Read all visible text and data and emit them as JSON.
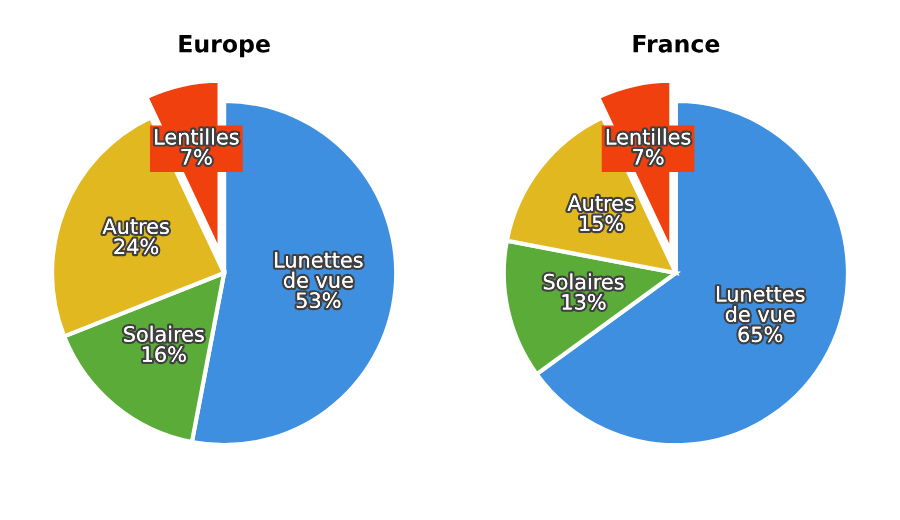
{
  "chart_data": [
    {
      "type": "pie",
      "title": "Europe",
      "categories": [
        "Lunettes de vue",
        "Solaires",
        "Autres",
        "Lentilles"
      ],
      "values": [
        53,
        16,
        24,
        7
      ],
      "value_labels": [
        "53%",
        "16%",
        "24%",
        "7%"
      ],
      "colors": [
        "#3f8fe0",
        "#5aab38",
        "#e2b820",
        "#f0400e"
      ],
      "legend": false
    },
    {
      "type": "pie",
      "title": "France",
      "categories": [
        "Lunettes de vue",
        "Solaires",
        "Autres",
        "Lentilles"
      ],
      "values": [
        65,
        13,
        15,
        7
      ],
      "value_labels": [
        "65%",
        "13%",
        "15%",
        "7%"
      ],
      "colors": [
        "#3f8fe0",
        "#5aab38",
        "#e2b820",
        "#f0400e"
      ],
      "legend": false
    }
  ]
}
